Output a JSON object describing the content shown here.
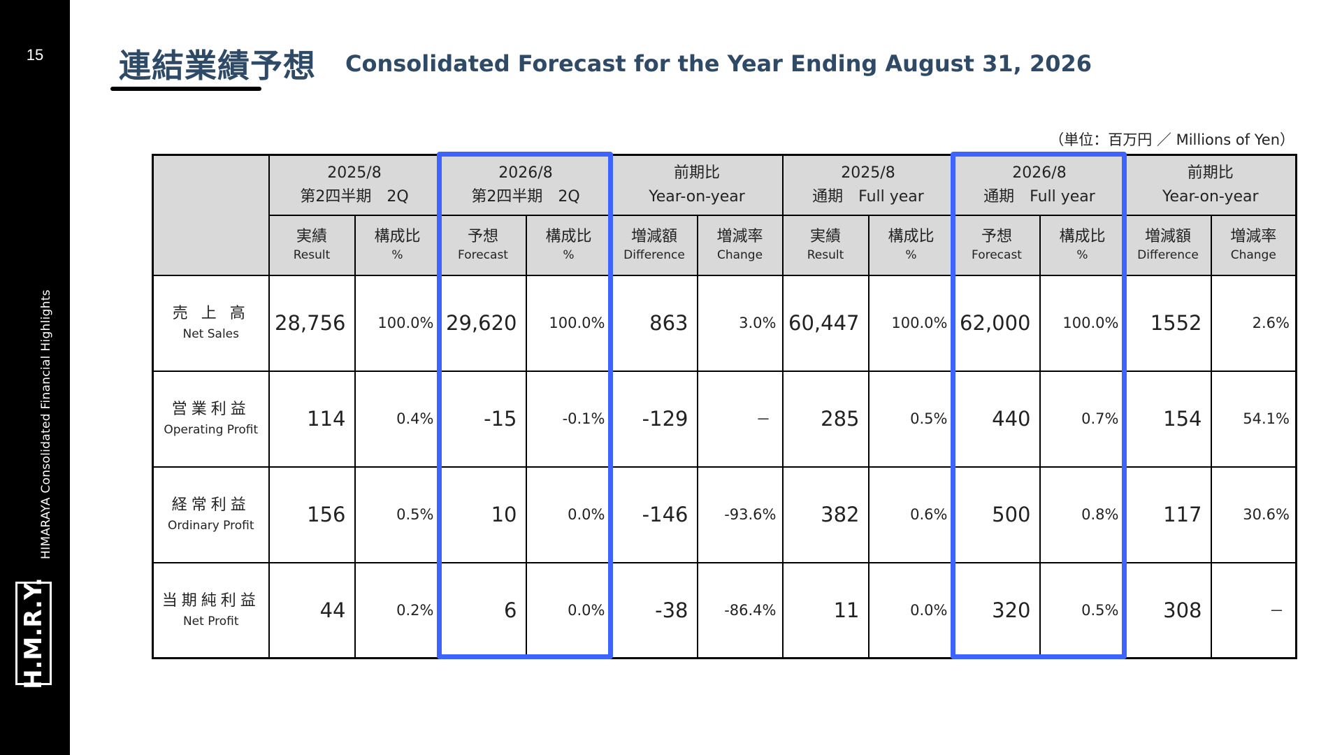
{
  "page_number": "15",
  "sidebar": {
    "vertical_text": "HIMARAYA  Consolidated Financial Highlights",
    "logo": "H.M.R.Y."
  },
  "title": {
    "jp": "連結業績予想",
    "en": "Consolidated Forecast for the Year Ending August 31, 2026"
  },
  "unit_note": "（単位：百万円 ／ Millions of Yen）",
  "table": {
    "group_headers": [
      {
        "line1": "2025/8",
        "line2": "第2四半期　2Q"
      },
      {
        "line1": "2026/8",
        "line2": "第2四半期　2Q"
      },
      {
        "line1": "前期比",
        "line2": "Year-on-year"
      },
      {
        "line1": "2025/8",
        "line2": "通期　Full year"
      },
      {
        "line1": "2026/8",
        "line2": "通期　Full year"
      },
      {
        "line1": "前期比",
        "line2": "Year-on-year"
      }
    ],
    "sub_headers": [
      {
        "jp": "実績",
        "en": "Result"
      },
      {
        "jp": "構成比",
        "en": "%"
      },
      {
        "jp": "予想",
        "en": "Forecast"
      },
      {
        "jp": "構成比",
        "en": "%"
      },
      {
        "jp": "増減額",
        "en": "Difference"
      },
      {
        "jp": "増減率",
        "en": "Change"
      },
      {
        "jp": "実績",
        "en": "Result"
      },
      {
        "jp": "構成比",
        "en": "%"
      },
      {
        "jp": "予想",
        "en": "Forecast"
      },
      {
        "jp": "構成比",
        "en": "%"
      },
      {
        "jp": "増減額",
        "en": "Difference"
      },
      {
        "jp": "増減率",
        "en": "Change"
      }
    ],
    "rows": [
      {
        "jp": "売 上 高",
        "en": "Net Sales",
        "values": [
          "28,756",
          "100.0%",
          "29,620",
          "100.0%",
          "863",
          "3.0%",
          "60,447",
          "100.0%",
          "62,000",
          "100.0%",
          "1552",
          "2.6%"
        ]
      },
      {
        "jp": "営業利益",
        "en": "Operating Profit",
        "values": [
          "114",
          "0.4%",
          "-15",
          "-0.1%",
          "-129",
          "－",
          "285",
          "0.5%",
          "440",
          "0.7%",
          "154",
          "54.1%"
        ]
      },
      {
        "jp": "経常利益",
        "en": "Ordinary Profit",
        "values": [
          "156",
          "0.5%",
          "10",
          "0.0%",
          "-146",
          "-93.6%",
          "382",
          "0.6%",
          "500",
          "0.8%",
          "117",
          "30.6%"
        ]
      },
      {
        "jp": "当期純利益",
        "en": "Net Profit",
        "values": [
          "44",
          "0.2%",
          "6",
          "0.0%",
          "-38",
          "-86.4%",
          "11",
          "0.0%",
          "320",
          "0.5%",
          "308",
          "－"
        ]
      }
    ]
  },
  "colors": {
    "highlight": "#3d64ff",
    "title": "#2e4a67",
    "header_bg": "#d9d9d9"
  }
}
